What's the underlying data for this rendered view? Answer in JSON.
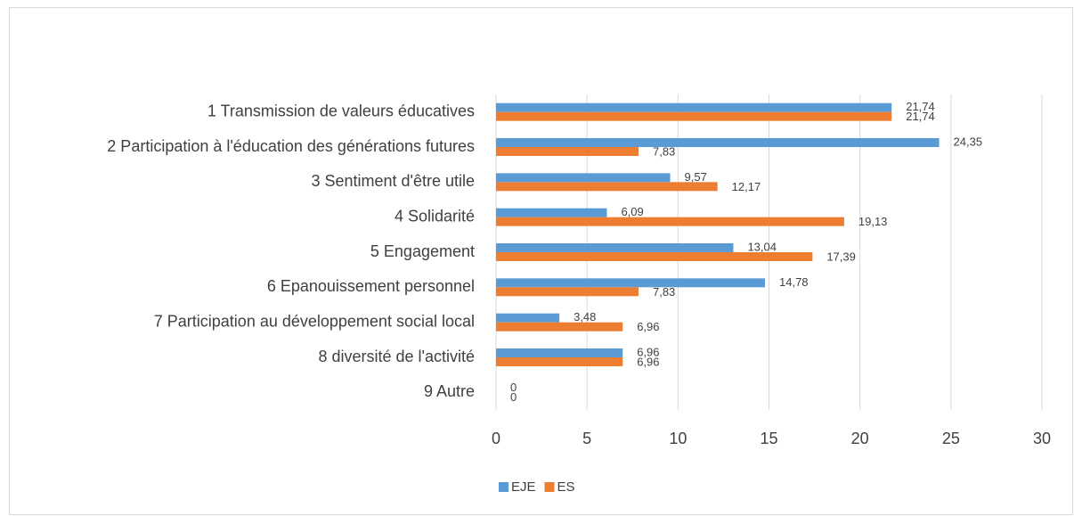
{
  "chart_data": {
    "type": "hbar",
    "categories": [
      "1 Transmission de valeurs éducatives",
      "2 Participation à l'éducation des générations futures",
      "3 Sentiment d'être utile",
      "4 Solidarité",
      "5 Engagement",
      "6 Epanouissement personnel",
      "7 Participation au développement social local",
      "8 diversité de l'activité",
      "9 Autre"
    ],
    "series": [
      {
        "name": "EJE",
        "color": "#5b9bd5",
        "values": [
          21.74,
          24.35,
          9.57,
          6.09,
          13.04,
          14.78,
          3.48,
          6.96,
          0
        ],
        "value_labels": [
          "21,74",
          "24,35",
          "9,57",
          "6,09",
          "13,04",
          "14,78",
          "3,48",
          "6,96",
          "0"
        ]
      },
      {
        "name": "ES",
        "color": "#ed7d31",
        "values": [
          21.74,
          7.83,
          12.17,
          19.13,
          17.39,
          7.83,
          6.96,
          6.96,
          0
        ],
        "value_labels": [
          "21,74",
          "7,83",
          "12,17",
          "19,13",
          "17,39",
          "7,83",
          "6,96",
          "6,96",
          "0"
        ]
      }
    ],
    "xlim": [
      0,
      30
    ],
    "xticks": [
      0,
      5,
      10,
      15,
      20,
      25,
      30
    ],
    "grid": true,
    "legend": "bottom"
  }
}
